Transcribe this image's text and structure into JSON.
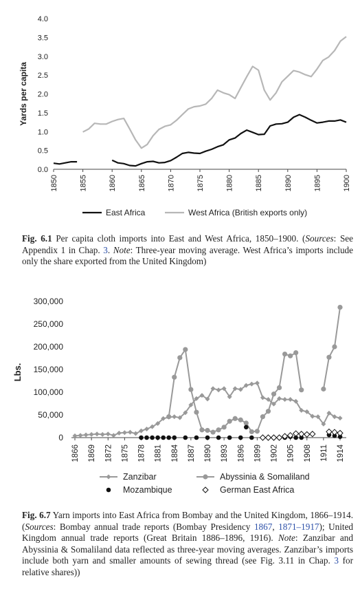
{
  "chart_data": [
    {
      "type": "line",
      "title": "",
      "ylabel": "Yards per capita",
      "xlabel": "",
      "xlim": [
        1850,
        1900
      ],
      "ylim": [
        0,
        4.0
      ],
      "yticks": [
        "0.0",
        "0.5",
        "1.0",
        "1.5",
        "2.0",
        "2.5",
        "3.0",
        "3.5",
        "4.0"
      ],
      "xticks": [
        "1850",
        "1855",
        "1860",
        "1865",
        "1870",
        "1875",
        "1880",
        "1885",
        "1890",
        "1895",
        "1900"
      ],
      "grid": false,
      "legend": "bottom",
      "series": [
        {
          "name": "East Africa",
          "color": "#111111",
          "segments": [
            [
              [
                1850,
                0.16
              ],
              [
                1851,
                0.14
              ],
              [
                1852,
                0.17
              ],
              [
                1853,
                0.2
              ],
              [
                1854,
                0.2
              ]
            ],
            [
              [
                1860,
                0.24
              ],
              [
                1861,
                0.17
              ],
              [
                1862,
                0.15
              ],
              [
                1863,
                0.1
              ],
              [
                1864,
                0.09
              ],
              [
                1865,
                0.15
              ],
              [
                1866,
                0.2
              ],
              [
                1867,
                0.21
              ],
              [
                1868,
                0.17
              ],
              [
                1869,
                0.18
              ],
              [
                1870,
                0.23
              ],
              [
                1871,
                0.32
              ],
              [
                1872,
                0.42
              ],
              [
                1873,
                0.45
              ],
              [
                1874,
                0.43
              ],
              [
                1875,
                0.42
              ],
              [
                1876,
                0.48
              ],
              [
                1877,
                0.53
              ],
              [
                1878,
                0.6
              ],
              [
                1879,
                0.65
              ],
              [
                1880,
                0.78
              ],
              [
                1881,
                0.83
              ],
              [
                1882,
                0.95
              ],
              [
                1883,
                1.04
              ],
              [
                1884,
                0.98
              ],
              [
                1885,
                0.92
              ],
              [
                1886,
                0.93
              ],
              [
                1887,
                1.15
              ],
              [
                1888,
                1.2
              ],
              [
                1889,
                1.21
              ],
              [
                1890,
                1.25
              ],
              [
                1891,
                1.38
              ],
              [
                1892,
                1.45
              ],
              [
                1893,
                1.38
              ],
              [
                1894,
                1.3
              ],
              [
                1895,
                1.23
              ],
              [
                1896,
                1.25
              ],
              [
                1897,
                1.28
              ],
              [
                1898,
                1.28
              ],
              [
                1899,
                1.31
              ],
              [
                1900,
                1.25
              ]
            ]
          ]
        },
        {
          "name": "West Africa (British exports only)",
          "color": "#b7b7b7",
          "segments": [
            [
              [
                1855,
                0.99
              ],
              [
                1856,
                1.07
              ],
              [
                1857,
                1.22
              ],
              [
                1858,
                1.2
              ],
              [
                1859,
                1.2
              ],
              [
                1860,
                1.27
              ],
              [
                1861,
                1.32
              ],
              [
                1862,
                1.35
              ],
              [
                1863,
                1.07
              ],
              [
                1864,
                0.78
              ],
              [
                1865,
                0.56
              ],
              [
                1866,
                0.66
              ],
              [
                1867,
                0.89
              ],
              [
                1868,
                1.06
              ],
              [
                1869,
                1.14
              ],
              [
                1870,
                1.18
              ],
              [
                1871,
                1.3
              ],
              [
                1872,
                1.45
              ],
              [
                1873,
                1.6
              ],
              [
                1874,
                1.66
              ],
              [
                1875,
                1.68
              ],
              [
                1876,
                1.73
              ],
              [
                1877,
                1.88
              ],
              [
                1878,
                2.1
              ],
              [
                1879,
                2.03
              ],
              [
                1880,
                1.98
              ],
              [
                1881,
                1.88
              ],
              [
                1882,
                2.17
              ],
              [
                1883,
                2.46
              ],
              [
                1884,
                2.73
              ],
              [
                1885,
                2.63
              ],
              [
                1886,
                2.1
              ],
              [
                1887,
                1.84
              ],
              [
                1888,
                2.03
              ],
              [
                1889,
                2.32
              ],
              [
                1890,
                2.47
              ],
              [
                1891,
                2.62
              ],
              [
                1892,
                2.58
              ],
              [
                1893,
                2.51
              ],
              [
                1894,
                2.46
              ],
              [
                1895,
                2.66
              ],
              [
                1896,
                2.89
              ],
              [
                1897,
                2.98
              ],
              [
                1898,
                3.15
              ],
              [
                1899,
                3.4
              ],
              [
                1900,
                3.52
              ]
            ]
          ]
        }
      ]
    },
    {
      "type": "line",
      "title": "",
      "ylabel": "Lbs.",
      "xlabel": "",
      "xlim": [
        1866,
        1914
      ],
      "ylim": [
        0,
        300000
      ],
      "yticks": [
        "0",
        "50,000",
        "100,000",
        "150,000",
        "200,000",
        "250,000",
        "300,000"
      ],
      "xticks": [
        "1866",
        "1869",
        "1872",
        "1875",
        "1878",
        "1881",
        "1884",
        "1887",
        "1890",
        "1893",
        "1896",
        "1899",
        "1902",
        "1905",
        "1908",
        "1911",
        "1914"
      ],
      "grid": false,
      "legend": "bottom",
      "series": [
        {
          "name": "Zanzibar",
          "marker": "diamond",
          "color": "#999999",
          "points": [
            [
              1866,
              4000
            ],
            [
              1867,
              5000
            ],
            [
              1868,
              6000
            ],
            [
              1869,
              7000
            ],
            [
              1870,
              8000
            ],
            [
              1871,
              7000
            ],
            [
              1872,
              8000
            ],
            [
              1873,
              5000
            ],
            [
              1874,
              10000
            ],
            [
              1875,
              11000
            ],
            [
              1876,
              12000
            ],
            [
              1877,
              9000
            ],
            [
              1878,
              15000
            ],
            [
              1879,
              19000
            ],
            [
              1880,
              24000
            ],
            [
              1881,
              31000
            ],
            [
              1882,
              42000
            ],
            [
              1883,
              45000
            ],
            [
              1884,
              46000
            ],
            [
              1885,
              44000
            ],
            [
              1886,
              55000
            ],
            [
              1887,
              72000
            ],
            [
              1888,
              86000
            ],
            [
              1889,
              93000
            ],
            [
              1890,
              85000
            ],
            [
              1891,
              108000
            ],
            [
              1892,
              105000
            ],
            [
              1893,
              108000
            ],
            [
              1894,
              90000
            ],
            [
              1895,
              108000
            ],
            [
              1896,
              106000
            ],
            [
              1897,
              115000
            ],
            [
              1898,
              118000
            ],
            [
              1899,
              120000
            ],
            [
              1900,
              88000
            ],
            [
              1901,
              84000
            ],
            [
              1902,
              74000
            ],
            [
              1903,
              86000
            ],
            [
              1904,
              84000
            ],
            [
              1905,
              84000
            ],
            [
              1906,
              80000
            ],
            [
              1907,
              60000
            ],
            [
              1908,
              57000
            ],
            [
              1909,
              47000
            ],
            [
              1910,
              46000
            ],
            [
              1911,
              30000
            ],
            [
              1912,
              54000
            ],
            [
              1913,
              46000
            ],
            [
              1914,
              43000
            ]
          ]
        },
        {
          "name": "Abyssinia & Somaliland",
          "marker": "circle",
          "color": "#999999",
          "points": [
            [
              1883,
              46000
            ],
            [
              1884,
              133000
            ],
            [
              1885,
              176000
            ],
            [
              1886,
              194000
            ],
            [
              1887,
              106000
            ],
            [
              1888,
              56000
            ],
            [
              1889,
              17000
            ],
            [
              1890,
              16000
            ],
            [
              1891,
              12000
            ],
            [
              1892,
              17000
            ],
            [
              1893,
              23000
            ],
            [
              1894,
              36000
            ],
            [
              1895,
              42000
            ],
            [
              1896,
              39000
            ],
            [
              1897,
              32000
            ],
            [
              1898,
              13000
            ],
            [
              1899,
              14000
            ],
            [
              1900,
              46000
            ],
            [
              1901,
              58000
            ],
            [
              1902,
              96000
            ],
            [
              1903,
              110000
            ],
            [
              1904,
              184000
            ],
            [
              1905,
              180000
            ],
            [
              1906,
              187000
            ],
            [
              1907,
              105000
            ],
            [
              1911,
              107000
            ],
            [
              1912,
              177000
            ],
            [
              1913,
              200000
            ],
            [
              1914,
              287000
            ]
          ]
        },
        {
          "name": "Mozambique",
          "marker": "filled-circle",
          "color": "#111111",
          "points": [
            [
              1878,
              0
            ],
            [
              1879,
              0
            ],
            [
              1880,
              0
            ],
            [
              1881,
              0
            ],
            [
              1882,
              0
            ],
            [
              1883,
              0
            ],
            [
              1884,
              0
            ],
            [
              1886,
              0
            ],
            [
              1888,
              0
            ],
            [
              1890,
              0
            ],
            [
              1892,
              0
            ],
            [
              1894,
              0
            ],
            [
              1896,
              0
            ],
            [
              1897,
              23000
            ],
            [
              1898,
              0
            ],
            [
              1902,
              0
            ],
            [
              1903,
              0
            ],
            [
              1904,
              0
            ],
            [
              1905,
              2000
            ],
            [
              1906,
              0
            ],
            [
              1907,
              0
            ],
            [
              1912,
              6000
            ],
            [
              1913,
              4000
            ],
            [
              1914,
              2000
            ]
          ]
        },
        {
          "name": "German East Africa",
          "marker": "open-diamond",
          "color": "#111111",
          "points": [
            [
              1900,
              0
            ],
            [
              1901,
              0
            ],
            [
              1902,
              0
            ],
            [
              1903,
              0
            ],
            [
              1904,
              3000
            ],
            [
              1905,
              5000
            ],
            [
              1906,
              9000
            ],
            [
              1907,
              8000
            ],
            [
              1908,
              7000
            ],
            [
              1909,
              8000
            ],
            [
              1912,
              13000
            ],
            [
              1913,
              12000
            ],
            [
              1914,
              10000
            ]
          ]
        }
      ]
    }
  ],
  "fig1_caption": {
    "label": "Fig. 6.1",
    "text1": "Per capita cloth imports into East and West Africa, 1850–1900. (",
    "sources": "Sources",
    "text2": ": See Appendix 1 in Chap. ",
    "chap": "3",
    "text3": ". ",
    "note": "Note",
    "text4": ": Three-year moving average. West Africa’s imports include only the share exported from the United Kingdom)"
  },
  "fig2_caption": {
    "label": "Fig. 6.7",
    "text1": "Yarn imports into East Africa from Bombay and the United Kingdom, 1866–1914. (",
    "sources": "Sources",
    "text2": ": Bombay annual trade reports (Bombay Presidency ",
    "link1": "1867",
    "text3": ", ",
    "link2": "1871–1917",
    "text4": "); United Kingdom annual trade reports (Great Britain 1886–1896, 1916). ",
    "note": "Note",
    "text5": ": Zanzibar and Abyssinia & Somaliland data reflected as three-year moving averages. Zanzibar’s imports include both yarn and smaller amounts of sewing thread (see Fig. 3.11 in Chap. ",
    "chap": "3",
    "text6": " for relative shares))"
  }
}
